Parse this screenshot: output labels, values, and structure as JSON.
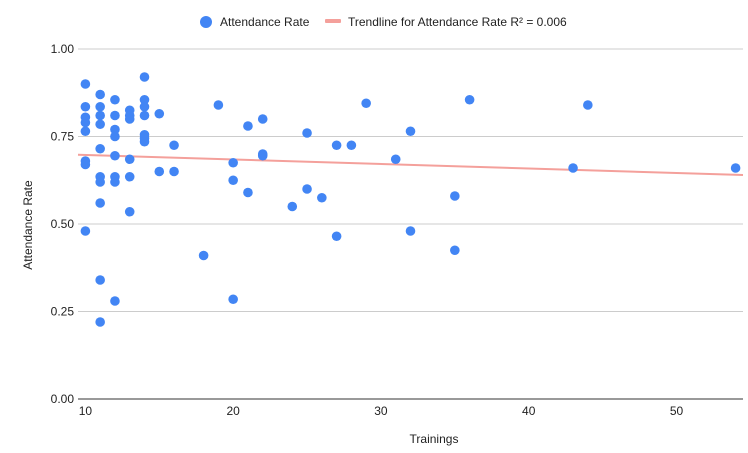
{
  "chart_data": {
    "type": "scatter",
    "title": "",
    "xlabel": "Trainings",
    "ylabel": "Attendance Rate",
    "xlim": [
      9.5,
      54.5
    ],
    "ylim": [
      0,
      1
    ],
    "x_ticks": [
      "10",
      "20",
      "30",
      "40",
      "50"
    ],
    "y_ticks": [
      "0.00",
      "0.25",
      "0.50",
      "0.75",
      "1.00"
    ],
    "grid": true,
    "legend_position": "top",
    "series": [
      {
        "name": "Attendance Rate",
        "color": "#4285f4",
        "points": [
          [
            10,
            0.9
          ],
          [
            10,
            0.835
          ],
          [
            10,
            0.805
          ],
          [
            10,
            0.79
          ],
          [
            10,
            0.765
          ],
          [
            10,
            0.68
          ],
          [
            10,
            0.67
          ],
          [
            10,
            0.48
          ],
          [
            11,
            0.87
          ],
          [
            11,
            0.835
          ],
          [
            11,
            0.81
          ],
          [
            11,
            0.785
          ],
          [
            11,
            0.715
          ],
          [
            11,
            0.635
          ],
          [
            11,
            0.62
          ],
          [
            11,
            0.56
          ],
          [
            11,
            0.34
          ],
          [
            11,
            0.22
          ],
          [
            12,
            0.855
          ],
          [
            12,
            0.81
          ],
          [
            12,
            0.77
          ],
          [
            12,
            0.75
          ],
          [
            12,
            0.695
          ],
          [
            12,
            0.635
          ],
          [
            12,
            0.62
          ],
          [
            12,
            0.28
          ],
          [
            13,
            0.825
          ],
          [
            13,
            0.81
          ],
          [
            13,
            0.8
          ],
          [
            13,
            0.685
          ],
          [
            13,
            0.635
          ],
          [
            13,
            0.535
          ],
          [
            14,
            0.92
          ],
          [
            14,
            0.855
          ],
          [
            14,
            0.835
          ],
          [
            14,
            0.81
          ],
          [
            14,
            0.755
          ],
          [
            14,
            0.745
          ],
          [
            14,
            0.735
          ],
          [
            15,
            0.815
          ],
          [
            15,
            0.65
          ],
          [
            16,
            0.725
          ],
          [
            16,
            0.65
          ],
          [
            18,
            0.41
          ],
          [
            19,
            0.84
          ],
          [
            20,
            0.675
          ],
          [
            20,
            0.625
          ],
          [
            20,
            0.285
          ],
          [
            21,
            0.78
          ],
          [
            21,
            0.59
          ],
          [
            22,
            0.8
          ],
          [
            22,
            0.7
          ],
          [
            22,
            0.695
          ],
          [
            24,
            0.55
          ],
          [
            25,
            0.76
          ],
          [
            25,
            0.6
          ],
          [
            26,
            0.575
          ],
          [
            27,
            0.725
          ],
          [
            27,
            0.465
          ],
          [
            28,
            0.725
          ],
          [
            29,
            0.845
          ],
          [
            31,
            0.685
          ],
          [
            32,
            0.765
          ],
          [
            32,
            0.48
          ],
          [
            35,
            0.58
          ],
          [
            35,
            0.425
          ],
          [
            36,
            0.855
          ],
          [
            43,
            0.66
          ],
          [
            44,
            0.84
          ],
          [
            54,
            0.66
          ]
        ]
      }
    ],
    "trendline": {
      "name": "Trendline for Attendance Rate R² = 0.006",
      "color": "#f4a09b",
      "x": [
        9.5,
        54.5
      ],
      "y": [
        0.698,
        0.64
      ]
    }
  }
}
